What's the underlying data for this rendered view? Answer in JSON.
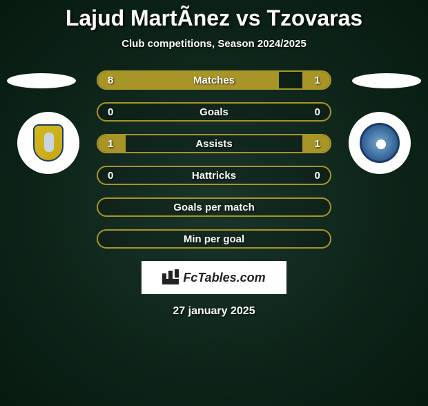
{
  "title": "Lajud MartÃ­nez vs Tzovaras",
  "subtitle": "Club competitions, Season 2024/2025",
  "date": "27 january 2025",
  "fctables_label": "FcTables.com",
  "colors": {
    "accent": "#a89528",
    "text": "#ffffff",
    "bg_center": "#1a352a",
    "bg_edge": "#071a10"
  },
  "stats": [
    {
      "label": "Matches",
      "left_val": "8",
      "right_val": "1",
      "left_pct": 78,
      "right_pct": 12
    },
    {
      "label": "Goals",
      "left_val": "0",
      "right_val": "0",
      "left_pct": 0,
      "right_pct": 0
    },
    {
      "label": "Assists",
      "left_val": "1",
      "right_val": "1",
      "left_pct": 12,
      "right_pct": 12
    },
    {
      "label": "Hattricks",
      "left_val": "0",
      "right_val": "0",
      "left_pct": 0,
      "right_pct": 0
    },
    {
      "label": "Goals per match",
      "left_val": "",
      "right_val": "",
      "left_pct": 0,
      "right_pct": 0
    },
    {
      "label": "Min per goal",
      "left_val": "",
      "right_val": "",
      "left_pct": 0,
      "right_pct": 0
    }
  ]
}
